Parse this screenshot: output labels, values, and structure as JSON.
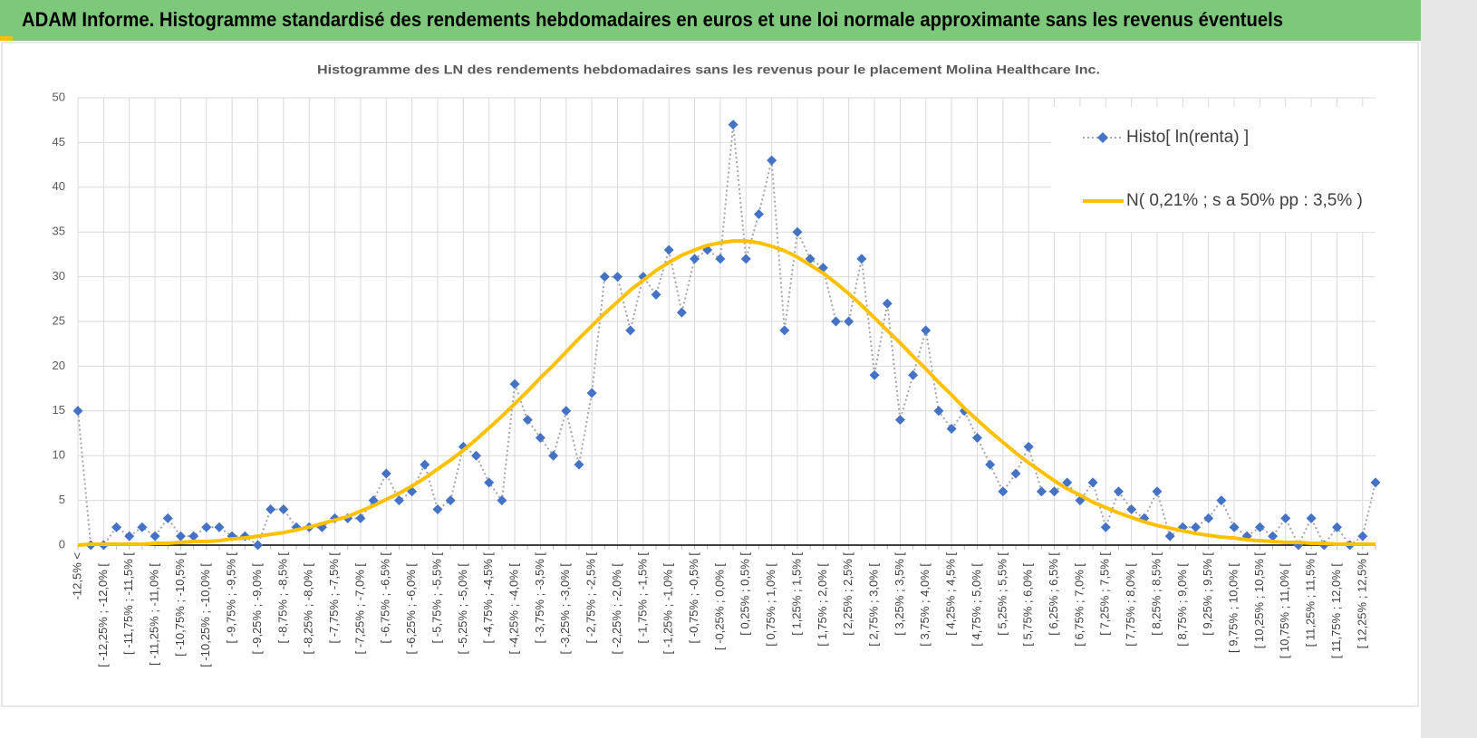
{
  "page_title": "ADAM Informe. Histogramme standardisé des rendements hebdomadaires en euros et une loi normale approximante sans les revenus éventuels",
  "chart_data": {
    "type": "line",
    "title": "Histogramme des LN des rendements hebdomadaires sans les revenus pour le placement Molina Healthcare Inc.",
    "categories": [
      "-12,5% <",
      null,
      "[ -12,25% ; -12,0% [",
      null,
      "[ -11,75% ; -11,5% [",
      null,
      "[ -11,25% ; -11,0% [",
      null,
      "[ -10,75% ; -10,5% [",
      null,
      "[ -10,25% ; -10,0% [",
      null,
      "[ -9,75% ; -9,5% [",
      null,
      "[ -9,25% ; -9,0% [",
      null,
      "[ -8,75% ; -8,5% [",
      null,
      "[ -8,25% ; -8,0% [",
      null,
      "[ -7,75% ; -7,5% [",
      null,
      "[ -7,25% ; -7,0% [",
      null,
      "[ -6,75% ; -6,5% [",
      null,
      "[ -6,25% ; -6,0% [",
      null,
      "[ -5,75% ; -5,5% [",
      null,
      "[ -5,25% ; -5,0% [",
      null,
      "[ -4,75% ; -4,5% [",
      null,
      "[ -4,25% ; -4,0% [",
      null,
      "[ -3,75% ; -3,5% [",
      null,
      "[ -3,25% ; -3,0% [",
      null,
      "[ -2,75% ; -2,5% [",
      null,
      "[ -2,25% ; -2,0% [",
      null,
      "[ -1,75% ; -1,5% [",
      null,
      "[ -1,25% ; -1,0% [",
      null,
      "[ -0,75% ; -0,5% [",
      null,
      "[ -0,25% ; 0,0% [",
      null,
      "[ 0,25% ; 0,5% [",
      null,
      "[ 0,75% ; 1,0% [",
      null,
      "[ 1,25% ; 1,5% [",
      null,
      "[ 1,75% ; 2,0% [",
      null,
      "[ 2,25% ; 2,5% [",
      null,
      "[ 2,75% ; 3,0% [",
      null,
      "[ 3,25% ; 3,5% [",
      null,
      "[ 3,75% ; 4,0% [",
      null,
      "[ 4,25% ; 4,5% [",
      null,
      "[ 4,75% ; 5,0% [",
      null,
      "[ 5,25% ; 5,5% [",
      null,
      "[ 5,75% ; 6,0% [",
      null,
      "[ 6,25% ; 6,5% [",
      null,
      "[ 6,75% ; 7,0% [",
      null,
      "[ 7,25% ; 7,5% [",
      null,
      "[ 7,75% ; 8,0% [",
      null,
      "[ 8,25% ; 8,5% [",
      null,
      "[ 8,75% ; 9,0% [",
      null,
      "[ 9,25% ; 9,5% [",
      null,
      "[ 9,75% ; 10,0% [",
      null,
      "[ 10,25% ; 10,5% [",
      null,
      "[ 10,75% ; 11,0% [",
      null,
      "[ 11,25% ; 11,5% [",
      null,
      "[ 11,75% ; 12,0% [",
      null,
      "[ 12,25% ; 12,5% [",
      null
    ],
    "series": [
      {
        "name": "Histo[ ln(renta) ]",
        "color": "#4472c4",
        "line_color": "#a5a5a5",
        "marker": "diamond",
        "line_style": "dotted",
        "values": [
          15,
          0,
          0,
          2,
          1,
          2,
          1,
          3,
          1,
          1,
          2,
          2,
          1,
          1,
          0,
          4,
          4,
          2,
          2,
          2,
          3,
          3,
          3,
          5,
          8,
          5,
          6,
          9,
          4,
          5,
          11,
          10,
          7,
          5,
          18,
          14,
          12,
          10,
          15,
          9,
          17,
          30,
          30,
          24,
          30,
          28,
          33,
          26,
          32,
          33,
          32,
          47,
          32,
          37,
          43,
          24,
          35,
          32,
          31,
          25,
          25,
          32,
          19,
          27,
          14,
          19,
          24,
          15,
          13,
          15,
          12,
          9,
          6,
          8,
          11,
          6,
          6,
          7,
          5,
          7,
          2,
          6,
          4,
          3,
          6,
          1,
          2,
          2,
          3,
          5,
          2,
          1,
          2,
          1,
          3,
          0,
          3,
          0,
          2,
          0,
          1,
          7
        ]
      },
      {
        "name": "N( 0,21% ; s a 50% pp : 3,5% )",
        "color": "#ffc000",
        "marker": "none",
        "line_style": "solid",
        "values": [
          0.0,
          0.1,
          0.1,
          0.1,
          0.1,
          0.1,
          0.2,
          0.2,
          0.3,
          0.4,
          0.4,
          0.5,
          0.7,
          0.8,
          1.0,
          1.2,
          1.4,
          1.7,
          2.0,
          2.4,
          2.8,
          3.2,
          3.8,
          4.4,
          5.1,
          5.8,
          6.6,
          7.5,
          8.5,
          9.5,
          10.6,
          11.8,
          13.1,
          14.4,
          15.8,
          17.2,
          18.7,
          20.1,
          21.6,
          23.1,
          24.5,
          25.9,
          27.2,
          28.5,
          29.6,
          30.7,
          31.6,
          32.4,
          33.0,
          33.5,
          33.8,
          34.0,
          34.0,
          33.8,
          33.4,
          32.9,
          32.2,
          31.3,
          30.4,
          29.3,
          28.1,
          26.8,
          25.4,
          24.0,
          22.6,
          21.1,
          19.7,
          18.2,
          16.8,
          15.3,
          14.0,
          12.7,
          11.5,
          10.3,
          9.2,
          8.2,
          7.2,
          6.3,
          5.6,
          4.8,
          4.2,
          3.6,
          3.1,
          2.6,
          2.2,
          1.9,
          1.6,
          1.3,
          1.1,
          0.9,
          0.8,
          0.6,
          0.5,
          0.4,
          0.3,
          0.3,
          0.2,
          0.2,
          0.1,
          0.1,
          0.1,
          0.1
        ]
      }
    ],
    "ylim": [
      0,
      50
    ],
    "yticks": [
      0,
      5,
      10,
      15,
      20,
      25,
      30,
      35,
      40,
      45,
      50
    ],
    "grid": true,
    "legend": "top-right"
  }
}
